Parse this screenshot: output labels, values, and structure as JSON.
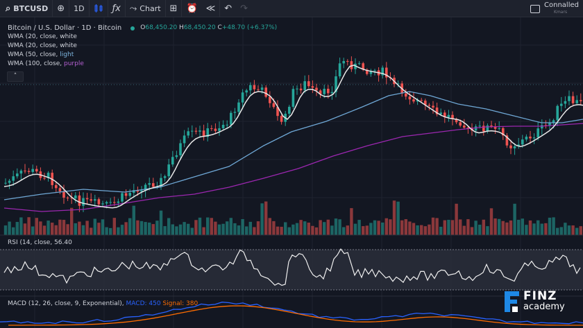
{
  "toolbar": {
    "symbol": "BTCUSD",
    "interval": "1D",
    "chart_label": "Chart",
    "icons": [
      "search-icon",
      "add-symbol-icon",
      "candles-icon",
      "indicators-icon",
      "chart-type-icon",
      "layout-icon",
      "alert-icon",
      "replay-icon",
      "undo-icon",
      "redo-icon"
    ]
  },
  "account": {
    "name": "Connalled",
    "sub": "Kmars"
  },
  "legend": {
    "title": "Bitcoin / U.S. Dollar · 1D · Bitcoin",
    "o_label": "O",
    "o_value": "68,450.20",
    "h_label": "H",
    "h_value": "68,450.20",
    "c_label": "C",
    "c_value": "+48.70 (+6.37%)",
    "lines": [
      {
        "prefix": "WMA (20, close, ",
        "color_word": "white",
        "suffix": "",
        "color": "#d1d4dc"
      },
      {
        "prefix": "WMA (20, close, ",
        "color_word": "white",
        "suffix": "",
        "color": "#d1d4dc"
      },
      {
        "prefix": "WMA (50, close, ",
        "color_word": "light",
        "suffix": "",
        "color": "#7eb6e0"
      },
      {
        "prefix": "WMA (100, close, ",
        "color_word": "purple",
        "suffix": "",
        "color": "#b45fd1"
      }
    ]
  },
  "rsi": {
    "label": "RSI (14, close, 56.40"
  },
  "macd": {
    "label": "MACD (12, 26, close, 9, Exponential),",
    "macd_label": "MACD: 450",
    "signal_label": "Signal: 380"
  },
  "logo": {
    "word1": "FINZ",
    "word2": "academy"
  },
  "colors": {
    "up": "#26a69a",
    "down": "#ef5350",
    "wma_white": "#e8e8e8",
    "wma_blue": "#6fa8d6",
    "wma_purple": "#9c27b0",
    "macd": "#2962ff",
    "signal": "#ff6d00",
    "logo_blue": "#1e88e5"
  }
}
